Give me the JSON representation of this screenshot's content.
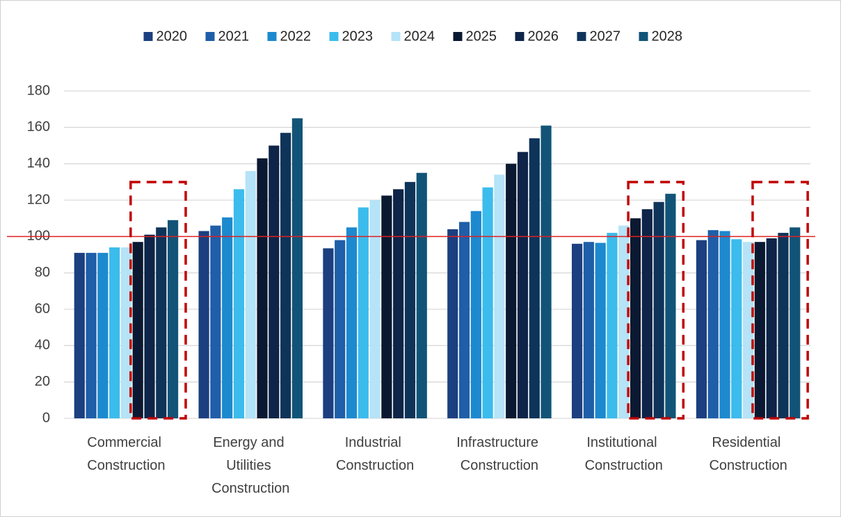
{
  "chart_data": {
    "type": "bar",
    "categories": [
      "Commercial Construction",
      "Energy and Utilities Construction",
      "Industrial Construction",
      "Infrastructure Construction",
      "Institutional Construction",
      "Residential Construction"
    ],
    "series": [
      {
        "name": "2020",
        "color": "#1c3f80",
        "values": [
          91,
          103,
          93.5,
          104,
          96,
          98
        ]
      },
      {
        "name": "2021",
        "color": "#1f5ea8",
        "values": [
          91,
          106,
          98,
          108,
          97,
          103.5
        ]
      },
      {
        "name": "2022",
        "color": "#1d89cf",
        "values": [
          91,
          110.5,
          105,
          114,
          96.5,
          103
        ]
      },
      {
        "name": "2023",
        "color": "#3bbcec",
        "values": [
          94,
          126,
          116,
          127,
          102,
          98.5
        ]
      },
      {
        "name": "2024",
        "color": "#b5e3f7",
        "values": [
          94,
          136,
          120,
          134,
          106,
          97
        ]
      },
      {
        "name": "2025",
        "color": "#0a1931",
        "values": [
          97,
          143,
          122.5,
          140,
          110,
          97
        ]
      },
      {
        "name": "2026",
        "color": "#0e2448",
        "values": [
          101,
          150,
          126,
          146.5,
          115,
          99
        ]
      },
      {
        "name": "2027",
        "color": "#0f3459",
        "values": [
          105,
          157,
          130,
          154,
          119,
          102
        ]
      },
      {
        "name": "2028",
        "color": "#125477",
        "values": [
          109,
          165,
          135,
          161,
          123.5,
          105
        ]
      }
    ],
    "ylim": [
      0,
      180
    ],
    "yticks": [
      0,
      20,
      40,
      60,
      80,
      100,
      120,
      140,
      160,
      180
    ],
    "grid": true,
    "legend": "top",
    "reference_line": {
      "value": 100,
      "color": "#e02020"
    },
    "highlight": {
      "categories": [
        0,
        4,
        5
      ],
      "first_series": 5,
      "color": "#c00000"
    }
  }
}
